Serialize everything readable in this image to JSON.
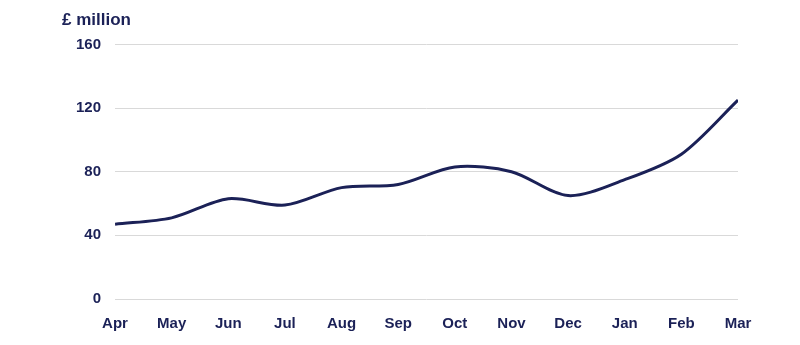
{
  "chart_data": {
    "type": "line",
    "ylabel": "£ million",
    "categories": [
      "Apr",
      "May",
      "Jun",
      "Jul",
      "Aug",
      "Sep",
      "Oct",
      "Nov",
      "Dec",
      "Jan",
      "Feb",
      "Mar"
    ],
    "values": [
      47,
      51,
      63,
      59,
      70,
      72,
      83,
      80,
      65,
      75,
      91,
      125
    ],
    "color": "#1b2157",
    "ylim": [
      0,
      160
    ],
    "yticks": [
      0,
      40,
      80,
      120,
      160
    ],
    "grid": true
  }
}
